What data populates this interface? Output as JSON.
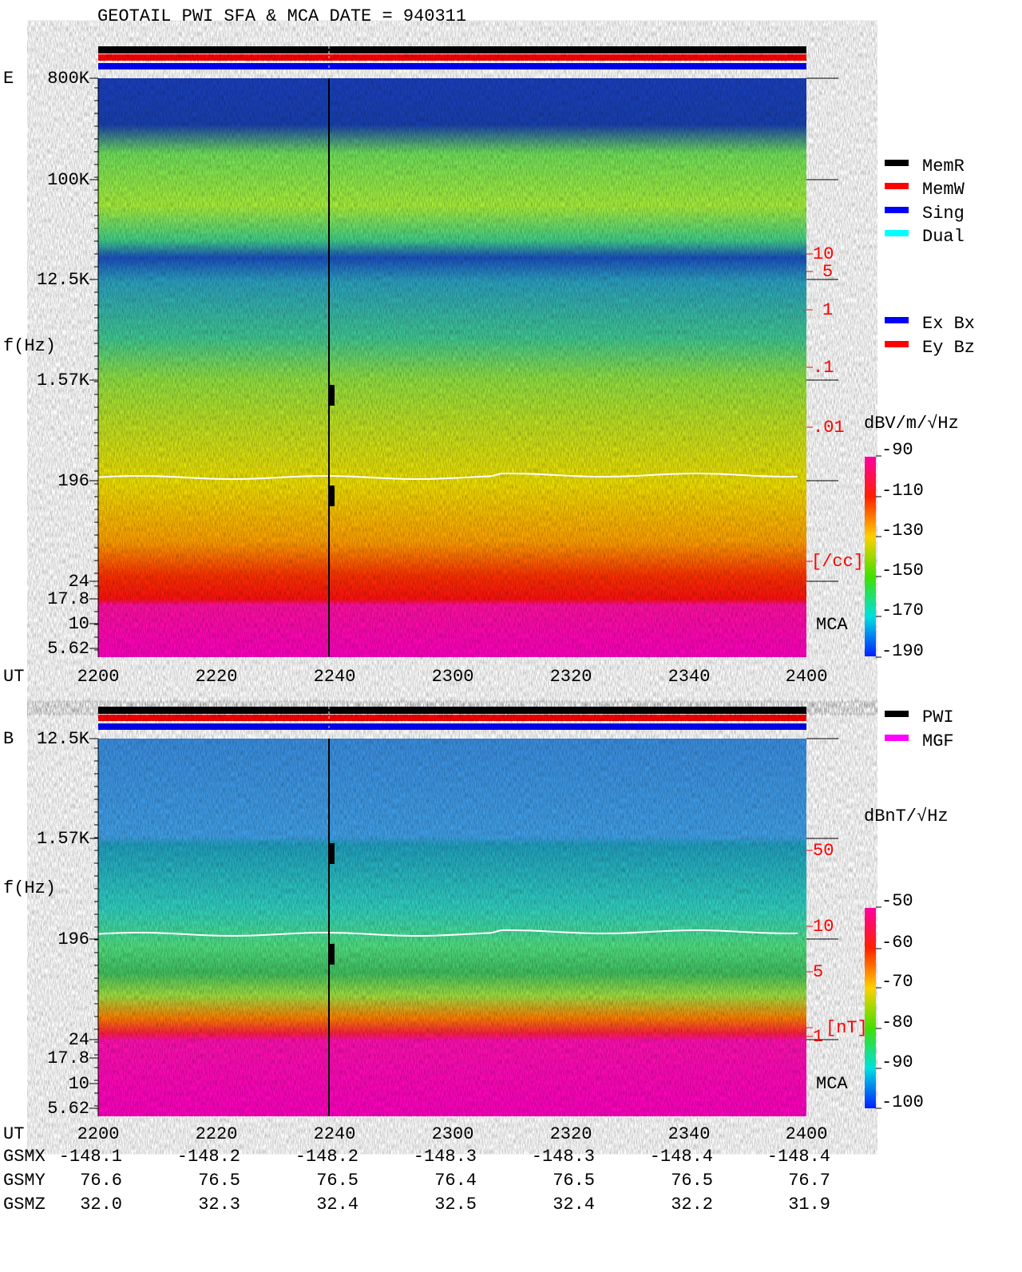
{
  "title": "GEOTAIL  PWI SFA & MCA   DATE = 940311",
  "panels": [
    {
      "label": "E",
      "y_axis_label": "f(Hz)",
      "freq_ticks": [
        "800K",
        "100K",
        "12.5K",
        "1.57K",
        "196",
        "24",
        "17.8",
        "10",
        "5.62"
      ],
      "right_ticks": [
        "10",
        "5",
        "1",
        ".1",
        ".01",
        "[/cc]"
      ],
      "mca": "MCA",
      "time_label": "UT",
      "time_ticks": [
        "2200",
        "2220",
        "2240",
        "2300",
        "2320",
        "2340",
        "2400"
      ],
      "colorbar_unit": "dBV/m/√Hz",
      "colorbar_ticks": [
        "-90",
        "-110",
        "-130",
        "-150",
        "-170",
        "-190"
      ]
    },
    {
      "label": "B",
      "y_axis_label": "f(Hz)",
      "freq_ticks": [
        "12.5K",
        "1.57K",
        "196",
        "24",
        "17.8",
        "10",
        "5.62"
      ],
      "right_ticks": [
        "50",
        "10",
        "5",
        "1",
        "[nT]"
      ],
      "mca": "MCA",
      "time_label": "UT",
      "time_ticks": [
        "2200",
        "2220",
        "2240",
        "2300",
        "2320",
        "2340",
        "2400"
      ],
      "colorbar_unit": "dBnT/√Hz",
      "colorbar_ticks": [
        "-50",
        "-60",
        "-70",
        "-80",
        "-90",
        "-100"
      ]
    }
  ],
  "legend_mode": [
    {
      "name": "MemR",
      "color": "#000000"
    },
    {
      "name": "MemW",
      "color": "#ff0000"
    },
    {
      "name": "Sing",
      "color": "#0000ff"
    },
    {
      "name": "Dual",
      "color": "#00ffff"
    }
  ],
  "legend_component": [
    {
      "name": "Ex Bx",
      "color": "#0000ff"
    },
    {
      "name": "Ey Bz",
      "color": "#ff0000"
    }
  ],
  "legend_source": [
    {
      "name": "PWI",
      "color": "#000000"
    },
    {
      "name": "MGF",
      "color": "#ff00ff"
    }
  ],
  "ephemeris": [
    {
      "name": "GSMX",
      "values": [
        "-148.1",
        "-148.2",
        "-148.2",
        "-148.3",
        "-148.3",
        "-148.4",
        "-148.4"
      ]
    },
    {
      "name": "GSMY",
      "values": [
        "76.6",
        "76.5",
        "76.5",
        "76.4",
        "76.5",
        "76.5",
        "76.7"
      ]
    },
    {
      "name": "GSMZ",
      "values": [
        "32.0",
        "32.3",
        "32.4",
        "32.5",
        "32.4",
        "32.2",
        "31.9"
      ]
    }
  ]
}
